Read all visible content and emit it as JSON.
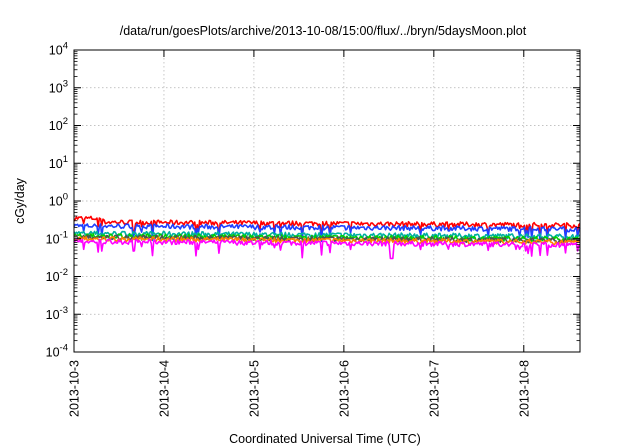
{
  "chart_data": {
    "type": "line",
    "title": "/data/run/goesPlots/archive/2013-10-08/15:00/flux/../bryn/5daysMoon.plot",
    "xlabel": "Coordinated Universal Time (UTC)",
    "ylabel": "cGy/day",
    "x_range": [
      "2013-10-03",
      "2013-10-08 15:00"
    ],
    "x_ticks": [
      "2013-10-3",
      "2013-10-4",
      "2013-10-5",
      "2013-10-6",
      "2013-10-7",
      "2013-10-8"
    ],
    "y_scale": "log",
    "ylim": [
      0.0001,
      10000
    ],
    "y_ticks": [
      {
        "value": 0.0001,
        "base": "10",
        "exp": "-4"
      },
      {
        "value": 0.001,
        "base": "10",
        "exp": "-3"
      },
      {
        "value": 0.01,
        "base": "10",
        "exp": "-2"
      },
      {
        "value": 0.1,
        "base": "10",
        "exp": "-1"
      },
      {
        "value": 1,
        "base": "10",
        "exp": "0"
      },
      {
        "value": 10,
        "base": "10",
        "exp": "1"
      },
      {
        "value": 100,
        "base": "10",
        "exp": "2"
      },
      {
        "value": 1000,
        "base": "10",
        "exp": "3"
      },
      {
        "value": 10000,
        "base": "10",
        "exp": "4"
      }
    ],
    "grid": true,
    "series": [
      {
        "color": "#ff0000",
        "level": 0.28
      },
      {
        "color": "#1f3fff",
        "level": 0.22
      },
      {
        "color": "#00b0a0",
        "level": 0.14
      },
      {
        "color": "#00d000",
        "level": 0.12
      },
      {
        "color": "#505050",
        "level": 0.11
      },
      {
        "color": "#ff8000",
        "level": 0.1
      },
      {
        "color": "#ff00ff",
        "level": 0.085
      }
    ]
  }
}
